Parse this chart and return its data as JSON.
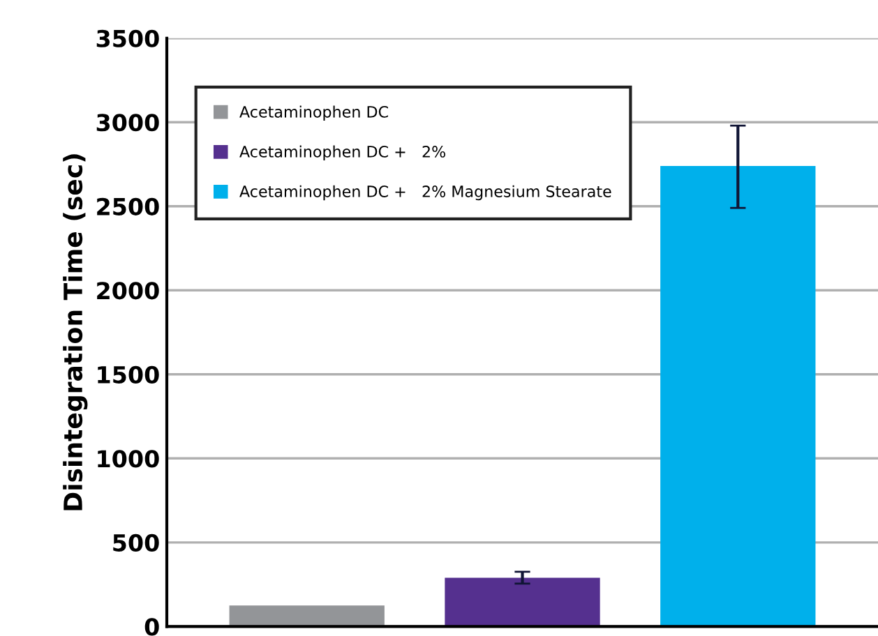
{
  "chart_data": {
    "type": "bar",
    "ylabel": "Disintegration Time (sec)",
    "categories": [
      null,
      null,
      null
    ],
    "series": [
      {
        "name": "Acetaminophen DC",
        "color": "#939598",
        "values": [
          125,
          null,
          null
        ]
      },
      {
        "name": "Acetaminophen DC +   2%",
        "color": "#55308f",
        "values": [
          null,
          290,
          null
        ],
        "errors": [
          null,
          [
            255,
            325
          ],
          null
        ]
      },
      {
        "name": "Acetaminophen DC +   2% Magnesium Stearate",
        "color": "#00b0eb",
        "values": [
          null,
          null,
          2740
        ],
        "errors": [
          null,
          null,
          [
            2490,
            2980
          ]
        ]
      }
    ],
    "ylim": [
      0,
      3500
    ],
    "yticks": [
      0,
      500,
      1000,
      1500,
      2000,
      2500,
      3000,
      3500
    ],
    "grid": "y",
    "legend": "top left"
  }
}
